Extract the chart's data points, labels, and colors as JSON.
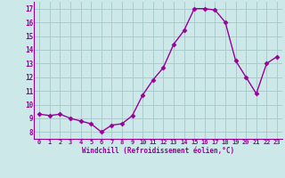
{
  "x": [
    0,
    1,
    2,
    3,
    4,
    5,
    6,
    7,
    8,
    9,
    10,
    11,
    12,
    13,
    14,
    15,
    16,
    17,
    18,
    19,
    20,
    21,
    22,
    23
  ],
  "y": [
    9.3,
    9.2,
    9.3,
    9.0,
    8.8,
    8.6,
    8.0,
    8.5,
    8.6,
    9.2,
    10.7,
    11.8,
    12.7,
    14.4,
    15.4,
    17.0,
    17.0,
    16.9,
    16.0,
    13.2,
    12.0,
    10.8,
    13.0,
    13.5
  ],
  "line_color": "#990099",
  "marker": "D",
  "marker_size": 2.5,
  "bg_color": "#cce8e8",
  "grid_color": "#aacccc",
  "xlabel": "Windchill (Refroidissement éolien,°C)",
  "xlabel_color": "#990099",
  "tick_color": "#990099",
  "ylim": [
    7.5,
    17.5
  ],
  "xlim": [
    -0.5,
    23.5
  ],
  "yticks": [
    8,
    9,
    10,
    11,
    12,
    13,
    14,
    15,
    16,
    17
  ],
  "xticks": [
    0,
    1,
    2,
    3,
    4,
    5,
    6,
    7,
    8,
    9,
    10,
    11,
    12,
    13,
    14,
    15,
    16,
    17,
    18,
    19,
    20,
    21,
    22,
    23
  ],
  "xtick_labels": [
    "0",
    "1",
    "2",
    "3",
    "4",
    "5",
    "6",
    "7",
    "8",
    "9",
    "10",
    "11",
    "12",
    "13",
    "14",
    "15",
    "16",
    "17",
    "18",
    "19",
    "20",
    "21",
    "22",
    "23"
  ],
  "line_width": 1.0,
  "border_color": "#7b6b8b"
}
